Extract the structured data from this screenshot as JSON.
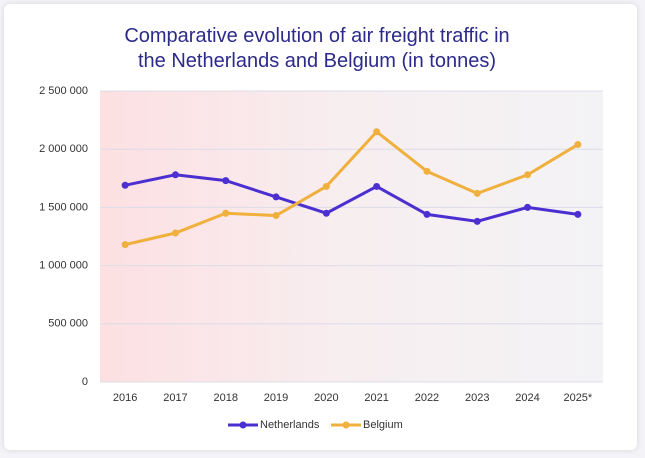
{
  "chart_data": {
    "type": "line",
    "title": "Comparative evolution of air freight traffic in the Netherlands and Belgium (in tonnes)",
    "categories": [
      "2016",
      "2017",
      "2018",
      "2019",
      "2020",
      "2021",
      "2022",
      "2023",
      "2024",
      "2025*"
    ],
    "series": [
      {
        "name": "Netherlands",
        "color": "#4b2fd0",
        "values": [
          1690000,
          1780000,
          1730000,
          1590000,
          1450000,
          1680000,
          1440000,
          1380000,
          1500000,
          1440000
        ]
      },
      {
        "name": "Belgium",
        "color": "#f0b03e",
        "values": [
          1180000,
          1280000,
          1450000,
          1430000,
          1680000,
          2150000,
          1810000,
          1620000,
          1780000,
          2040000
        ]
      }
    ],
    "ylim": [
      0,
      2500000
    ],
    "yticks": [
      0,
      {
        "value": 500000,
        "label": "500 000"
      },
      {
        "value": 1000000,
        "label": "1 000 000"
      },
      {
        "value": 1500000,
        "label": "1 500 000"
      },
      {
        "value": 2000000,
        "label": "2 000 000"
      },
      {
        "value": 2500000,
        "label": "2 500 000"
      }
    ],
    "grid": true,
    "legend": "bottom"
  }
}
